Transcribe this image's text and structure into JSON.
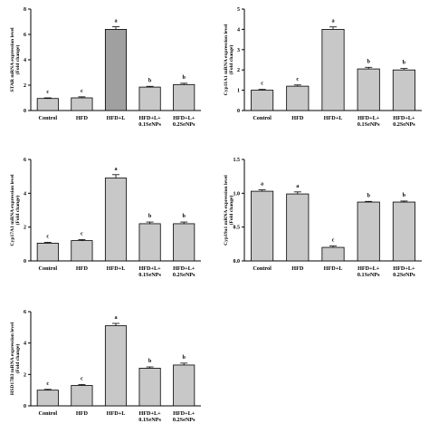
{
  "chart_data": [
    {
      "type": "bar",
      "ylabel": "STAR mRNA expression level",
      "ylabel2": "(Fold change)",
      "categories": [
        "Control",
        "HFD",
        "HFD+L",
        "HFD+L+\n0.1SeNPs",
        "HFD+L+\n0.2SeNPs"
      ],
      "values": [
        0.95,
        1.0,
        6.4,
        1.85,
        2.05
      ],
      "errors": [
        0.05,
        0.08,
        0.2,
        0.06,
        0.1
      ],
      "letters": [
        "c",
        "c",
        "a",
        "b",
        "b"
      ],
      "colors": [
        "#c8c8c8",
        "#c8c8c8",
        "#a0a0a0",
        "#c8c8c8",
        "#c8c8c8"
      ],
      "ylim": [
        0,
        8
      ],
      "yticks": [
        0,
        2,
        4,
        6,
        8
      ]
    },
    {
      "type": "bar",
      "ylabel": "Cyp11A1 mRNA expression level",
      "ylabel2": "(Fold change)",
      "categories": [
        "Control",
        "HFD",
        "HFD+L",
        "HFD+L+\n0.1SeNPs",
        "HFD+L+\n0.2SeNPs"
      ],
      "values": [
        1.0,
        1.2,
        4.0,
        2.05,
        2.0
      ],
      "errors": [
        0.04,
        0.06,
        0.12,
        0.08,
        0.07
      ],
      "letters": [
        "c",
        "c",
        "a",
        "b",
        "b"
      ],
      "colors": [
        "#c8c8c8",
        "#c8c8c8",
        "#c8c8c8",
        "#c8c8c8",
        "#c8c8c8"
      ],
      "ylim": [
        0,
        5
      ],
      "yticks": [
        0,
        1,
        2,
        3,
        4,
        5
      ]
    },
    {
      "type": "bar",
      "ylabel": "Cyp17A1 mRNA expression level",
      "ylabel2": "(Fold change)",
      "categories": [
        "Control",
        "HFD",
        "HFD+L",
        "HFD+L+\n0.1SeNPs",
        "HFD+L+\n0.2SeNPs"
      ],
      "values": [
        1.05,
        1.2,
        4.9,
        2.2,
        2.2
      ],
      "errors": [
        0.05,
        0.06,
        0.2,
        0.1,
        0.1
      ],
      "letters": [
        "c",
        "c",
        "a",
        "b",
        "b"
      ],
      "colors": [
        "#c8c8c8",
        "#c8c8c8",
        "#c8c8c8",
        "#c8c8c8",
        "#c8c8c8"
      ],
      "ylim": [
        0,
        6
      ],
      "yticks": [
        0,
        2,
        4,
        6
      ]
    },
    {
      "type": "bar",
      "ylabel": "Cyp19a1 mRNA expression level",
      "ylabel2": "(Fold change)",
      "categories": [
        "Control",
        "HFD",
        "HFD+L",
        "HFD+L+\n0.1SeNPs",
        "HFD+L+\n0.2SeNPs"
      ],
      "values": [
        1.03,
        0.99,
        0.2,
        0.87,
        0.87
      ],
      "errors": [
        0.02,
        0.03,
        0.02,
        0.01,
        0.015
      ],
      "letters": [
        "a",
        "a",
        "c",
        "b",
        "b"
      ],
      "colors": [
        "#c8c8c8",
        "#c8c8c8",
        "#c8c8c8",
        "#c8c8c8",
        "#c8c8c8"
      ],
      "ylim": [
        0,
        1.5
      ],
      "yticks": [
        "0.0",
        "0.5",
        "1.0",
        "1.5"
      ]
    },
    {
      "type": "bar",
      "ylabel": "HSD17B3 mRNA expression level",
      "ylabel2": "(Fold change)",
      "categories": [
        "Control",
        "HFD",
        "HFD+L",
        "HFD+L+\n0.1SeNPs",
        "HFD+L+\n0.2SeNPs"
      ],
      "values": [
        1.0,
        1.3,
        5.1,
        2.4,
        2.6
      ],
      "errors": [
        0.05,
        0.06,
        0.15,
        0.08,
        0.12
      ],
      "letters": [
        "c",
        "c",
        "a",
        "b",
        "b"
      ],
      "colors": [
        "#c8c8c8",
        "#c8c8c8",
        "#c8c8c8",
        "#c8c8c8",
        "#c8c8c8"
      ],
      "ylim": [
        0,
        6
      ],
      "yticks": [
        0,
        2,
        4,
        6
      ]
    }
  ]
}
